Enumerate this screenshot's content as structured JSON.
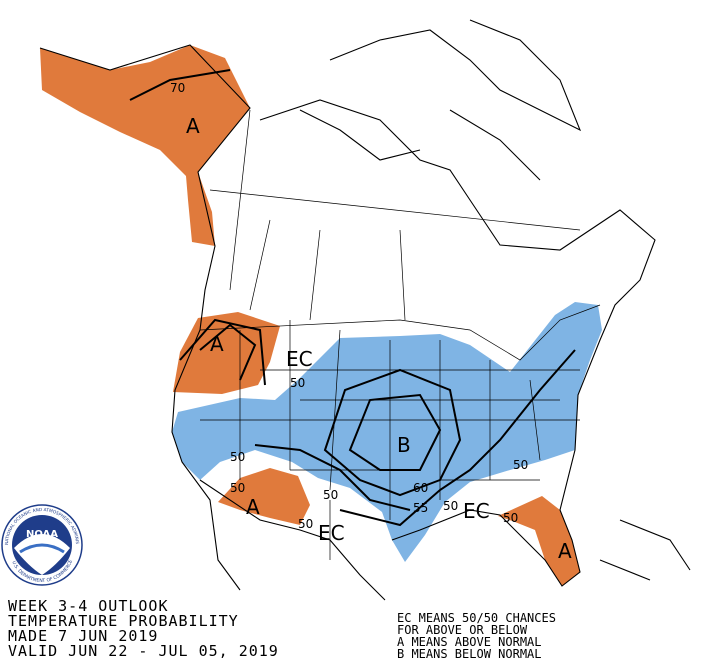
{
  "map": {
    "labels": [
      "A",
      "70",
      "A",
      "EC",
      "50",
      "B",
      "50",
      "50",
      "A",
      "50",
      "60",
      "55",
      "50",
      "EC",
      "50",
      "50",
      "50",
      "EC",
      "A"
    ]
  },
  "legend_left": [
    "WEEK 3-4 OUTLOOK",
    "TEMPERATURE PROBABILITY",
    "MADE  7 JUN 2019",
    "VALID  JUN 22 - JUL 05, 2019"
  ],
  "legend_right": [
    "EC MEANS 50/50 CHANCES",
    "FOR ABOVE OR BELOW",
    "A MEANS ABOVE NORMAL",
    "B MEANS BELOW NORMAL"
  ],
  "logo": {
    "name": "NOAA",
    "ring": "NATIONAL OCEANIC AND ATMOSPHERIC ADMINISTRATION",
    "ring_bottom": "U.S. DEPARTMENT OF COMMERCE"
  }
}
